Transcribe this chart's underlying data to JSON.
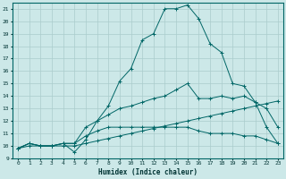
{
  "xlabel": "Humidex (Indice chaleur)",
  "bg_color": "#cce8e8",
  "grid_color": "#aacccc",
  "line_color": "#006666",
  "xlim": [
    -0.5,
    23.5
  ],
  "ylim": [
    9,
    21.5
  ],
  "yticks": [
    9,
    10,
    11,
    12,
    13,
    14,
    15,
    16,
    17,
    18,
    19,
    20,
    21
  ],
  "xticks": [
    0,
    1,
    2,
    3,
    4,
    5,
    6,
    7,
    8,
    9,
    10,
    11,
    12,
    13,
    14,
    15,
    16,
    17,
    18,
    19,
    20,
    21,
    22,
    23
  ],
  "lines": [
    {
      "x": [
        0,
        1,
        2,
        3,
        4,
        5,
        6,
        7,
        8,
        9,
        10,
        11,
        12,
        13,
        14,
        15,
        16,
        17,
        18,
        19,
        20,
        21,
        22,
        23
      ],
      "y": [
        9.8,
        10.2,
        10.0,
        10.0,
        10.2,
        9.5,
        10.5,
        12.0,
        13.2,
        15.2,
        16.2,
        18.5,
        19.0,
        21.0,
        21.0,
        21.3,
        20.2,
        18.2,
        17.5,
        15.0,
        14.8,
        13.5,
        11.5,
        10.2
      ],
      "marker": "+"
    },
    {
      "x": [
        0,
        1,
        2,
        3,
        4,
        5,
        6,
        7,
        8,
        9,
        10,
        11,
        12,
        13,
        14,
        15,
        16,
        17,
        18,
        19,
        20,
        21,
        22,
        23
      ],
      "y": [
        9.8,
        10.2,
        10.0,
        10.0,
        10.2,
        10.2,
        11.5,
        12.0,
        12.5,
        13.0,
        13.2,
        13.5,
        13.8,
        14.0,
        14.5,
        15.0,
        13.8,
        13.8,
        14.0,
        13.8,
        14.0,
        13.5,
        13.0,
        11.5
      ],
      "marker": "+"
    },
    {
      "x": [
        0,
        1,
        2,
        3,
        4,
        5,
        6,
        7,
        8,
        9,
        10,
        11,
        12,
        13,
        14,
        15,
        16,
        17,
        18,
        19,
        20,
        21,
        22,
        23
      ],
      "y": [
        9.8,
        10.2,
        10.0,
        10.0,
        10.2,
        10.2,
        10.8,
        11.2,
        11.5,
        11.5,
        11.5,
        11.5,
        11.5,
        11.5,
        11.5,
        11.5,
        11.2,
        11.0,
        11.0,
        11.0,
        10.8,
        10.8,
        10.5,
        10.2
      ],
      "marker": "+"
    },
    {
      "x": [
        0,
        1,
        2,
        3,
        4,
        5,
        6,
        7,
        8,
        9,
        10,
        11,
        12,
        13,
        14,
        15,
        16,
        17,
        18,
        19,
        20,
        21,
        22,
        23
      ],
      "y": [
        9.8,
        10.0,
        10.0,
        10.0,
        10.0,
        10.0,
        10.2,
        10.4,
        10.6,
        10.8,
        11.0,
        11.2,
        11.4,
        11.6,
        11.8,
        12.0,
        12.2,
        12.4,
        12.6,
        12.8,
        13.0,
        13.2,
        13.4,
        13.6
      ],
      "marker": "+"
    }
  ]
}
